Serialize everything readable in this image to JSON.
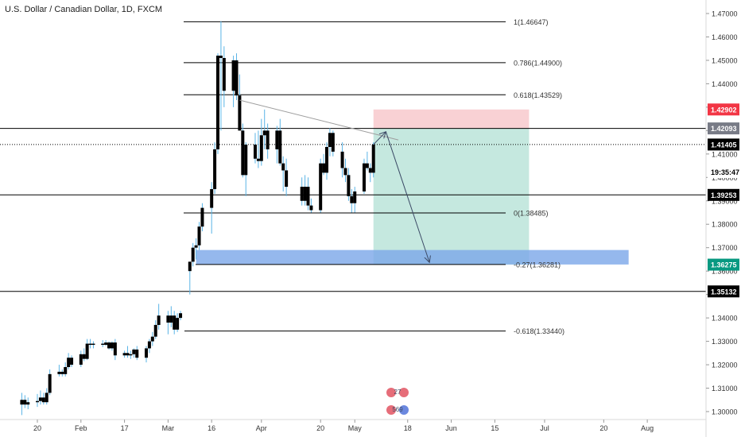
{
  "header": {
    "title": "U.S. Dollar / Canadian Dollar, 1D, FXCM"
  },
  "colors": {
    "up": "#000000",
    "down": "#000000",
    "wick": "#5ab4e6",
    "fib_line": "#000000",
    "trendline": "#9e9e9e",
    "tp_zone": "#b2e0d4",
    "sl_zone": "#f8c9cc",
    "support_zone": "#7aa6e8",
    "arrow": "#3c4a66"
  },
  "chart_data": {
    "type": "candlestick",
    "symbol": "U.S. Dollar / Canadian Dollar",
    "timeframe": "1D",
    "source": "FXCM",
    "x_axis_labels": [
      "20",
      "Feb",
      "17",
      "Mar",
      "16",
      "Apr",
      "20",
      "May",
      "18",
      "Jun",
      "15",
      "Jul",
      "20",
      "Aug"
    ],
    "x_axis_dates": [
      "2020-01-20",
      "2020-02-03",
      "2020-02-17",
      "2020-03-02",
      "2020-03-16",
      "2020-04-01",
      "2020-04-20",
      "2020-05-01",
      "2020-05-18",
      "2020-06-01",
      "2020-06-15",
      "2020-07-01",
      "2020-07-20",
      "2020-08-03"
    ],
    "y_axis": {
      "range": [
        1.2955,
        1.4733
      ],
      "ticks": [
        "1.30000",
        "1.31000",
        "1.32000",
        "1.33000",
        "1.34000",
        "1.35000",
        "1.36000",
        "1.37000",
        "1.38000",
        "1.39000",
        "1.40000",
        "1.41000",
        "1.42000",
        "1.43000",
        "1.44000",
        "1.45000",
        "1.46000",
        "1.47000"
      ]
    },
    "candles": [
      {
        "date": "2020-01-15",
        "o": 1.303,
        "h": 1.308,
        "l": 1.2985,
        "c": 1.305
      },
      {
        "date": "2020-01-16",
        "o": 1.305,
        "h": 1.307,
        "l": 1.3015,
        "c": 1.303
      },
      {
        "date": "2020-01-17",
        "o": 1.303,
        "h": 1.306,
        "l": 1.301,
        "c": 1.304
      },
      {
        "date": "2020-01-20",
        "o": 1.304,
        "h": 1.3075,
        "l": 1.302,
        "c": 1.3045
      },
      {
        "date": "2020-01-21",
        "o": 1.3045,
        "h": 1.309,
        "l": 1.303,
        "c": 1.306
      },
      {
        "date": "2020-01-22",
        "o": 1.306,
        "h": 1.308,
        "l": 1.303,
        "c": 1.304
      },
      {
        "date": "2020-01-23",
        "o": 1.304,
        "h": 1.31,
        "l": 1.303,
        "c": 1.308
      },
      {
        "date": "2020-01-24",
        "o": 1.308,
        "h": 1.318,
        "l": 1.307,
        "c": 1.316
      },
      {
        "date": "2020-01-27",
        "o": 1.316,
        "h": 1.32,
        "l": 1.315,
        "c": 1.317
      },
      {
        "date": "2020-01-28",
        "o": 1.317,
        "h": 1.318,
        "l": 1.315,
        "c": 1.316
      },
      {
        "date": "2020-01-29",
        "o": 1.316,
        "h": 1.321,
        "l": 1.315,
        "c": 1.319
      },
      {
        "date": "2020-01-30",
        "o": 1.319,
        "h": 1.325,
        "l": 1.318,
        "c": 1.323
      },
      {
        "date": "2020-01-31",
        "o": 1.323,
        "h": 1.324,
        "l": 1.319,
        "c": 1.32
      },
      {
        "date": "2020-02-03",
        "o": 1.32,
        "h": 1.326,
        "l": 1.319,
        "c": 1.3245
      },
      {
        "date": "2020-02-04",
        "o": 1.3245,
        "h": 1.327,
        "l": 1.3215,
        "c": 1.3225
      },
      {
        "date": "2020-02-05",
        "o": 1.3225,
        "h": 1.331,
        "l": 1.322,
        "c": 1.329
      },
      {
        "date": "2020-02-06",
        "o": 1.329,
        "h": 1.331,
        "l": 1.327,
        "c": 1.3285
      },
      {
        "date": "2020-02-07",
        "o": 1.3285,
        "h": 1.33,
        "l": 1.327,
        "c": 1.329
      },
      {
        "date": "2020-02-10",
        "o": 1.329,
        "h": 1.3305,
        "l": 1.3275,
        "c": 1.3285
      },
      {
        "date": "2020-02-11",
        "o": 1.3285,
        "h": 1.3305,
        "l": 1.328,
        "c": 1.3295
      },
      {
        "date": "2020-02-12",
        "o": 1.3295,
        "h": 1.33,
        "l": 1.3265,
        "c": 1.327
      },
      {
        "date": "2020-02-13",
        "o": 1.327,
        "h": 1.33,
        "l": 1.326,
        "c": 1.3295
      },
      {
        "date": "2020-02-14",
        "o": 1.3295,
        "h": 1.331,
        "l": 1.322,
        "c": 1.324
      },
      {
        "date": "2020-02-17",
        "o": 1.324,
        "h": 1.326,
        "l": 1.323,
        "c": 1.325
      },
      {
        "date": "2020-02-18",
        "o": 1.325,
        "h": 1.328,
        "l": 1.323,
        "c": 1.324
      },
      {
        "date": "2020-02-19",
        "o": 1.324,
        "h": 1.326,
        "l": 1.3225,
        "c": 1.3245
      },
      {
        "date": "2020-02-20",
        "o": 1.3245,
        "h": 1.327,
        "l": 1.323,
        "c": 1.3265
      },
      {
        "date": "2020-02-21",
        "o": 1.3265,
        "h": 1.328,
        "l": 1.322,
        "c": 1.323
      },
      {
        "date": "2020-02-24",
        "o": 1.323,
        "h": 1.328,
        "l": 1.321,
        "c": 1.327
      },
      {
        "date": "2020-02-25",
        "o": 1.327,
        "h": 1.331,
        "l": 1.325,
        "c": 1.33
      },
      {
        "date": "2020-02-26",
        "o": 1.33,
        "h": 1.334,
        "l": 1.328,
        "c": 1.332
      },
      {
        "date": "2020-02-27",
        "o": 1.332,
        "h": 1.339,
        "l": 1.331,
        "c": 1.337
      },
      {
        "date": "2020-02-28",
        "o": 1.337,
        "h": 1.346,
        "l": 1.335,
        "c": 1.341
      },
      {
        "date": "2020-03-02",
        "o": 1.341,
        "h": 1.343,
        "l": 1.333,
        "c": 1.338
      },
      {
        "date": "2020-03-03",
        "o": 1.338,
        "h": 1.345,
        "l": 1.336,
        "c": 1.341
      },
      {
        "date": "2020-03-04",
        "o": 1.341,
        "h": 1.343,
        "l": 1.333,
        "c": 1.335
      },
      {
        "date": "2020-03-05",
        "o": 1.335,
        "h": 1.342,
        "l": 1.334,
        "c": 1.34
      },
      {
        "date": "2020-03-06",
        "o": 1.34,
        "h": 1.343,
        "l": 1.339,
        "c": 1.342
      },
      {
        "date": "2020-03-09",
        "o": 1.36,
        "h": 1.364,
        "l": 1.35,
        "c": 1.364
      },
      {
        "date": "2020-03-10",
        "o": 1.364,
        "h": 1.372,
        "l": 1.362,
        "c": 1.37
      },
      {
        "date": "2020-03-11",
        "o": 1.37,
        "h": 1.374,
        "l": 1.365,
        "c": 1.371
      },
      {
        "date": "2020-03-12",
        "o": 1.371,
        "h": 1.381,
        "l": 1.369,
        "c": 1.379
      },
      {
        "date": "2020-03-13",
        "o": 1.379,
        "h": 1.389,
        "l": 1.377,
        "c": 1.387
      },
      {
        "date": "2020-03-16",
        "o": 1.387,
        "h": 1.398,
        "l": 1.376,
        "c": 1.395
      },
      {
        "date": "2020-03-17",
        "o": 1.395,
        "h": 1.415,
        "l": 1.393,
        "c": 1.412
      },
      {
        "date": "2020-03-18",
        "o": 1.412,
        "h": 1.453,
        "l": 1.41,
        "c": 1.452
      },
      {
        "date": "2020-03-19",
        "o": 1.452,
        "h": 1.4667,
        "l": 1.42,
        "c": 1.451
      },
      {
        "date": "2020-03-20",
        "o": 1.451,
        "h": 1.456,
        "l": 1.43,
        "c": 1.437
      },
      {
        "date": "2020-03-23",
        "o": 1.437,
        "h": 1.452,
        "l": 1.43,
        "c": 1.45
      },
      {
        "date": "2020-03-24",
        "o": 1.45,
        "h": 1.453,
        "l": 1.433,
        "c": 1.435
      },
      {
        "date": "2020-03-25",
        "o": 1.435,
        "h": 1.444,
        "l": 1.42,
        "c": 1.42
      },
      {
        "date": "2020-03-26",
        "o": 1.42,
        "h": 1.423,
        "l": 1.4,
        "c": 1.401
      },
      {
        "date": "2020-03-27",
        "o": 1.401,
        "h": 1.415,
        "l": 1.392,
        "c": 1.414
      },
      {
        "date": "2020-03-30",
        "o": 1.414,
        "h": 1.419,
        "l": 1.406,
        "c": 1.408
      },
      {
        "date": "2020-03-31",
        "o": 1.408,
        "h": 1.42,
        "l": 1.404,
        "c": 1.407
      },
      {
        "date": "2020-04-01",
        "o": 1.407,
        "h": 1.425,
        "l": 1.405,
        "c": 1.418
      },
      {
        "date": "2020-04-02",
        "o": 1.418,
        "h": 1.429,
        "l": 1.412,
        "c": 1.42
      },
      {
        "date": "2020-04-03",
        "o": 1.42,
        "h": 1.423,
        "l": 1.408,
        "c": 1.412
      },
      {
        "date": "2020-04-06",
        "o": 1.412,
        "h": 1.422,
        "l": 1.406,
        "c": 1.42
      },
      {
        "date": "2020-04-07",
        "o": 1.42,
        "h": 1.425,
        "l": 1.405,
        "c": 1.406
      },
      {
        "date": "2020-04-08",
        "o": 1.406,
        "h": 1.409,
        "l": 1.394,
        "c": 1.403
      },
      {
        "date": "2020-04-09",
        "o": 1.403,
        "h": 1.408,
        "l": 1.392,
        "c": 1.396
      },
      {
        "date": "2020-04-14",
        "o": 1.396,
        "h": 1.4,
        "l": 1.388,
        "c": 1.39
      },
      {
        "date": "2020-04-15",
        "o": 1.39,
        "h": 1.401,
        "l": 1.388,
        "c": 1.396
      },
      {
        "date": "2020-04-16",
        "o": 1.396,
        "h": 1.4,
        "l": 1.386,
        "c": 1.388
      },
      {
        "date": "2020-04-17",
        "o": 1.388,
        "h": 1.391,
        "l": 1.385,
        "c": 1.386
      },
      {
        "date": "2020-04-20",
        "o": 1.386,
        "h": 1.408,
        "l": 1.385,
        "c": 1.406
      },
      {
        "date": "2020-04-21",
        "o": 1.406,
        "h": 1.41,
        "l": 1.401,
        "c": 1.402
      },
      {
        "date": "2020-04-22",
        "o": 1.402,
        "h": 1.415,
        "l": 1.399,
        "c": 1.413
      },
      {
        "date": "2020-04-23",
        "o": 1.413,
        "h": 1.421,
        "l": 1.409,
        "c": 1.419
      },
      {
        "date": "2020-04-24",
        "o": 1.419,
        "h": 1.42,
        "l": 1.409,
        "c": 1.411
      },
      {
        "date": "2020-04-27",
        "o": 1.411,
        "h": 1.415,
        "l": 1.4,
        "c": 1.404
      },
      {
        "date": "2020-04-28",
        "o": 1.404,
        "h": 1.408,
        "l": 1.398,
        "c": 1.401
      },
      {
        "date": "2020-04-29",
        "o": 1.401,
        "h": 1.404,
        "l": 1.39,
        "c": 1.392
      },
      {
        "date": "2020-04-30",
        "o": 1.392,
        "h": 1.395,
        "l": 1.385,
        "c": 1.389
      },
      {
        "date": "2020-05-01",
        "o": 1.389,
        "h": 1.396,
        "l": 1.385,
        "c": 1.394
      },
      {
        "date": "2020-05-04",
        "o": 1.394,
        "h": 1.408,
        "l": 1.393,
        "c": 1.406
      },
      {
        "date": "2020-05-05",
        "o": 1.406,
        "h": 1.411,
        "l": 1.403,
        "c": 1.404
      },
      {
        "date": "2020-05-06",
        "o": 1.404,
        "h": 1.406,
        "l": 1.398,
        "c": 1.402
      },
      {
        "date": "2020-05-07",
        "o": 1.402,
        "h": 1.415,
        "l": 1.4,
        "c": 1.414
      }
    ],
    "fib_levels": [
      {
        "label": "1(1.46647)",
        "value": 1.46647
      },
      {
        "label": "0.786(1.44900)",
        "value": 1.449
      },
      {
        "label": "0.618(1.43529)",
        "value": 1.43529
      },
      {
        "label": "0(1.38485)",
        "value": 1.38485
      },
      {
        "label": "-0.27(1.36281)",
        "value": 1.36281
      },
      {
        "label": "-0.618(1.33440)",
        "value": 1.3344
      }
    ],
    "horizontal_lines": [
      {
        "value": 1.42093,
        "style": "solid"
      },
      {
        "value": 1.41405,
        "style": "dotted"
      },
      {
        "value": 1.39253,
        "style": "solid"
      },
      {
        "value": 1.35132,
        "style": "solid"
      }
    ],
    "price_labels": [
      {
        "text": "1.42902",
        "value": 1.42902,
        "color": "#f23645",
        "text_color": "#ffffff"
      },
      {
        "text": "1.42093",
        "value": 1.42093,
        "color": "#787b86",
        "text_color": "#ffffff"
      },
      {
        "text": "1.41405",
        "value": 1.41405,
        "color": "#000000",
        "text_color": "#ffffff"
      },
      {
        "text": "19:35:47",
        "value": 1.4023,
        "color": "#ffffff",
        "text_color": "#000000"
      },
      {
        "text": "1.39253",
        "value": 1.39253,
        "color": "#000000",
        "text_color": "#ffffff"
      },
      {
        "text": "1.36275",
        "value": 1.36275,
        "color": "#089981",
        "text_color": "#ffffff"
      },
      {
        "text": "1.35132",
        "value": 1.35132,
        "color": "#000000",
        "text_color": "#ffffff"
      }
    ],
    "trade_setup": {
      "entry": 1.42093,
      "stop_loss": 1.42902,
      "take_profit": 1.36275,
      "start_date": "2020-05-07",
      "end_date": "2020-06-26"
    },
    "support_zone": {
      "top": 1.369,
      "bottom": 1.36281,
      "start_date": "2020-03-11",
      "end_date": "2020-07-28"
    },
    "trendline": {
      "from": {
        "date": "2020-03-25",
        "price": 1.433
      },
      "to": {
        "date": "2020-05-15",
        "price": 1.416
      }
    },
    "projection_arrows": [
      {
        "from": {
          "date": "2020-05-07",
          "price": 1.41405
        },
        "to": {
          "date": "2020-05-11",
          "price": 1.4195
        }
      },
      {
        "from": {
          "date": "2020-05-11",
          "price": 1.4195
        },
        "to": {
          "date": "2020-05-25",
          "price": 1.3637
        }
      }
    ],
    "watermark": {
      "lines": [
        "27",
        "569"
      ]
    }
  }
}
